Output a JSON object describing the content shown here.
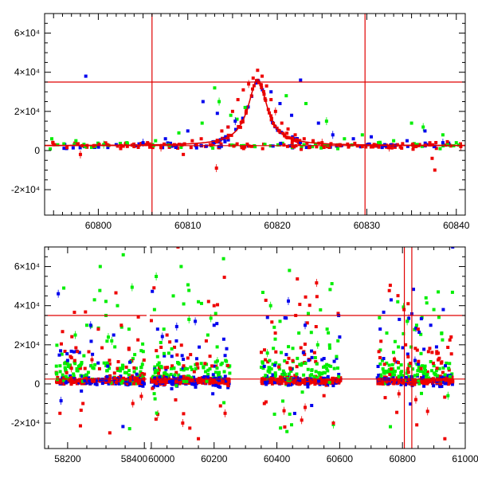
{
  "colors": {
    "g": "#00ee00",
    "b": "#0000ee",
    "r": "#ee0000",
    "axis": "#000000",
    "background": "#ffffff"
  },
  "chart_data": [
    {
      "type": "scatter",
      "name": "zoomed light curve",
      "xlim": [
        60794,
        60841
      ],
      "ylim": [
        -33000,
        70000
      ],
      "x_ticks": [
        60800,
        60810,
        60820,
        60830,
        60840
      ],
      "x_tick_labels": [
        "60800",
        "60810",
        "60820",
        "60830",
        "60840"
      ],
      "y_ticks": [
        -20000,
        0,
        20000,
        40000,
        60000
      ],
      "y_tick_labels": [
        "-2×10⁴",
        "0",
        "2×10⁴",
        "4×10⁴",
        "6×10⁴"
      ],
      "hlines": [
        35000,
        2500
      ],
      "vlines": [
        60806,
        60829.8
      ],
      "model": {
        "peak_x": 60817.8,
        "peak_y": 36000,
        "baseline": 2500,
        "width": 1.3
      },
      "series": [
        {
          "name": "g",
          "x": [
            60794.8,
            60797.5,
            60800.6,
            60803.2,
            60806.4,
            60809.0,
            60811.6,
            60813.0,
            60813.5,
            60814.8,
            60815.5,
            60816.4,
            60821.0,
            60823.2,
            60825.5,
            60827.5,
            60829.5,
            60831.3,
            60833.0,
            60835.0,
            60836.3,
            60838.5,
            60840.0
          ],
          "y": [
            6000,
            5000,
            3000,
            4000,
            5000,
            9000,
            14000,
            32000,
            25000,
            18000,
            16000,
            22000,
            28000,
            24000,
            15000,
            6000,
            8000,
            4000,
            5000,
            14000,
            12000,
            8000,
            4000
          ]
        },
        {
          "name": "b",
          "x": [
            60798.6,
            60802.0,
            60805.0,
            60807.5,
            60810.0,
            60811.7,
            60813.3,
            60814.5,
            60815.3,
            60819.3,
            60820.3,
            60821.6,
            60822.6,
            60824.6,
            60826.2,
            60828.5,
            60830.5,
            60832.0,
            60834.5,
            60836.5,
            60838.5
          ],
          "y": [
            38000,
            3000,
            4000,
            6000,
            10000,
            25000,
            19000,
            12000,
            15000,
            30000,
            24000,
            18000,
            36000,
            14000,
            8000,
            6000,
            7000,
            3000,
            5000,
            10000,
            4000
          ]
        },
        {
          "name": "r",
          "x": [
            60795.0,
            60796.5,
            60798.0,
            60799.5,
            60801.0,
            60802.5,
            60804.0,
            60805.5,
            60807.0,
            60808.5,
            60809.5,
            60810.5,
            60811.5,
            60812.5,
            60813.2,
            60813.8,
            60814.5,
            60815.0,
            60815.6,
            60816.2,
            60816.8,
            60817.3,
            60817.8,
            60818.3,
            60818.8,
            60819.3,
            60819.8,
            60820.5,
            60821.2,
            60822.0,
            60823.0,
            60824.0,
            60825.0,
            60826.0,
            60827.0,
            60828.0,
            60829.5,
            60831.0,
            60832.5,
            60834.0,
            60835.5,
            60837.3,
            60837.6,
            60839.0,
            60840.5
          ],
          "y": [
            3000,
            1500,
            -2000,
            2500,
            3000,
            1000,
            2000,
            4000,
            1500,
            3000,
            -2000,
            5000,
            6000,
            3000,
            -9000,
            10000,
            12000,
            20000,
            26000,
            31000,
            34000,
            37000,
            41000,
            38000,
            33000,
            26000,
            20000,
            14000,
            11000,
            8000,
            6000,
            5000,
            4000,
            3500,
            3000,
            2500,
            2000,
            2800,
            1500,
            3500,
            2000,
            -4000,
            -10000,
            4500,
            2000
          ]
        }
      ]
    },
    {
      "type": "scatter",
      "name": "full light curve",
      "xlim": [
        58140,
        61000
      ],
      "ylim": [
        -33000,
        70000
      ],
      "x_axis_break": [
        58410,
        59990
      ],
      "x_ticks": [
        58200,
        58400,
        60000,
        60200,
        60400,
        60600,
        60800,
        61000
      ],
      "x_tick_labels": [
        "58200",
        "58400",
        "60000",
        "60200",
        "60400",
        "60600",
        "60800",
        "61000"
      ],
      "y_ticks": [
        -20000,
        0,
        20000,
        40000,
        60000
      ],
      "y_tick_labels": [
        "-2×10⁴",
        "0",
        "2×10⁴",
        "4×10⁴",
        "6×10⁴"
      ],
      "hlines": [
        35000,
        2500
      ],
      "vlines": [
        60806,
        60829.8
      ],
      "seasons": [
        [
          58170,
          58400
        ],
        [
          60000,
          60250
        ],
        [
          60350,
          60605
        ],
        [
          60720,
          60960
        ]
      ],
      "series": [
        {
          "name": "g",
          "x": [
            58190,
            58220,
            58250,
            58270,
            58285,
            58300,
            58315,
            58330,
            58345,
            58360,
            58375,
            58395,
            60010,
            60040,
            60070,
            60095,
            60120,
            60150,
            60180,
            60205,
            60230,
            60380,
            60410,
            60440,
            60470,
            60500,
            60530,
            60560,
            60590,
            60750,
            60785,
            60815,
            60845,
            60875,
            60900,
            60925,
            60945
          ],
          "y": [
            49000,
            25000,
            30000,
            43000,
            60000,
            35000,
            22000,
            40000,
            66000,
            28000,
            15000,
            10000,
            38000,
            28000,
            45000,
            60000,
            33000,
            42000,
            25000,
            36000,
            64000,
            40000,
            32000,
            58000,
            26000,
            36000,
            20000,
            28000,
            14000,
            26000,
            42000,
            32000,
            30000,
            44000,
            38000,
            26000,
            -6000
          ]
        },
        {
          "name": "b",
          "x": [
            58200,
            58260,
            58320,
            58380,
            60020,
            60080,
            60140,
            60200,
            60240,
            60370,
            60430,
            60490,
            60550,
            60600,
            60740,
            60790,
            60840,
            60890,
            60930,
            60960
          ],
          "y": [
            12000,
            30000,
            25000,
            5000,
            28000,
            22000,
            32000,
            30000,
            18000,
            34000,
            15000,
            30000,
            13000,
            24000,
            13000,
            33000,
            12000,
            30000,
            38000,
            70000
          ]
        },
        {
          "name": "r",
          "x": [
            58180,
            58210,
            58240,
            58280,
            58310,
            58340,
            58370,
            58400,
            60015,
            60050,
            60085,
            60100,
            60125,
            60150,
            60175,
            60200,
            60235,
            60360,
            60395,
            60425,
            60460,
            60490,
            60520,
            60550,
            60580,
            60745,
            60775,
            60805,
            60810,
            60818,
            60850,
            60880,
            60910,
            60935,
            60955
          ],
          "y": [
            -15000,
            8000,
            -10000,
            28000,
            -25000,
            30000,
            -10000,
            5000,
            -18000,
            25000,
            70000,
            -20000,
            15000,
            -28000,
            22000,
            40000,
            -15000,
            -10000,
            26000,
            -22000,
            35000,
            -12000,
            16000,
            -6000,
            -20000,
            -7000,
            12000,
            38000,
            20000,
            41000,
            28000,
            -14000,
            8000,
            -28000,
            24000
          ]
        }
      ]
    }
  ]
}
